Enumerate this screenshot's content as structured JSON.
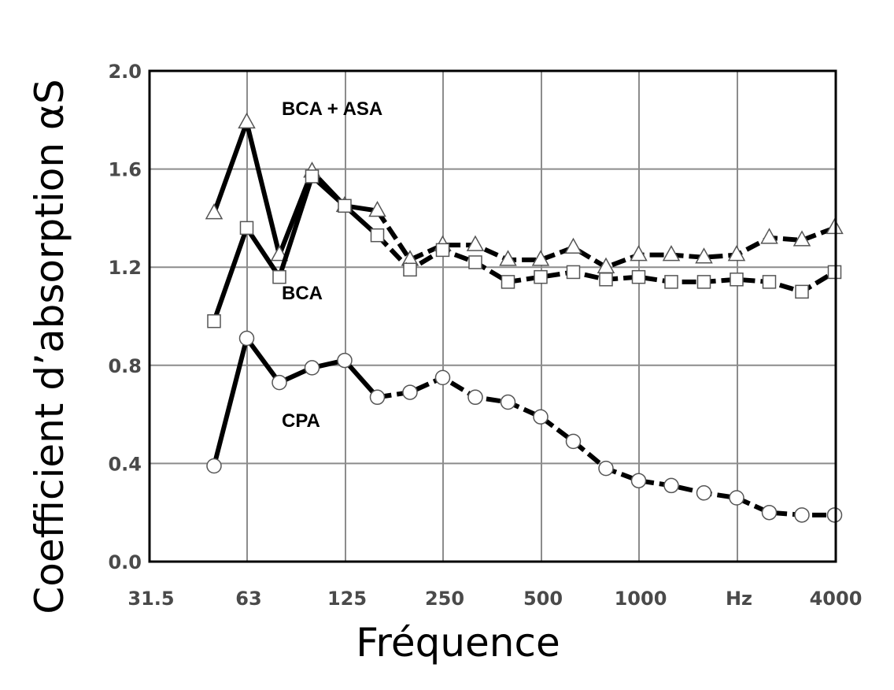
{
  "chart_data": {
    "type": "line",
    "title": "",
    "xlabel": "Fréquence",
    "ylabel": "Coefficient d’absorption αS",
    "ylim": [
      0,
      2.0
    ],
    "yticks": [
      "0.0",
      "0.4",
      "0.8",
      "1.2",
      "1.6",
      "2.0"
    ],
    "xticks": [
      "31.5",
      "63",
      "125",
      "250",
      "500",
      "1000",
      "Hz",
      "4000"
    ],
    "x": [
      50,
      63,
      80,
      100,
      125,
      160,
      200,
      250,
      315,
      400,
      500,
      630,
      800,
      1000,
      1250,
      1600,
      2000,
      2500,
      3150,
      4000
    ],
    "grid": true,
    "series": [
      {
        "name": "BCA + ASA",
        "marker": "triangle",
        "values": [
          1.42,
          1.79,
          1.25,
          1.59,
          1.45,
          1.43,
          1.23,
          1.29,
          1.29,
          1.23,
          1.23,
          1.28,
          1.2,
          1.25,
          1.25,
          1.24,
          1.25,
          1.32,
          1.31,
          1.36
        ]
      },
      {
        "name": "BCA",
        "marker": "square",
        "values": [
          0.98,
          1.36,
          1.16,
          1.57,
          1.45,
          1.33,
          1.19,
          1.27,
          1.22,
          1.14,
          1.16,
          1.18,
          1.15,
          1.16,
          1.14,
          1.14,
          1.15,
          1.14,
          1.1,
          1.18
        ]
      },
      {
        "name": "CPA",
        "marker": "circle",
        "values": [
          0.39,
          0.91,
          0.73,
          0.79,
          0.82,
          0.67,
          0.69,
          0.75,
          0.67,
          0.65,
          0.59,
          0.49,
          0.38,
          0.33,
          0.31,
          0.28,
          0.26,
          0.2,
          0.19,
          0.19
        ]
      }
    ]
  }
}
